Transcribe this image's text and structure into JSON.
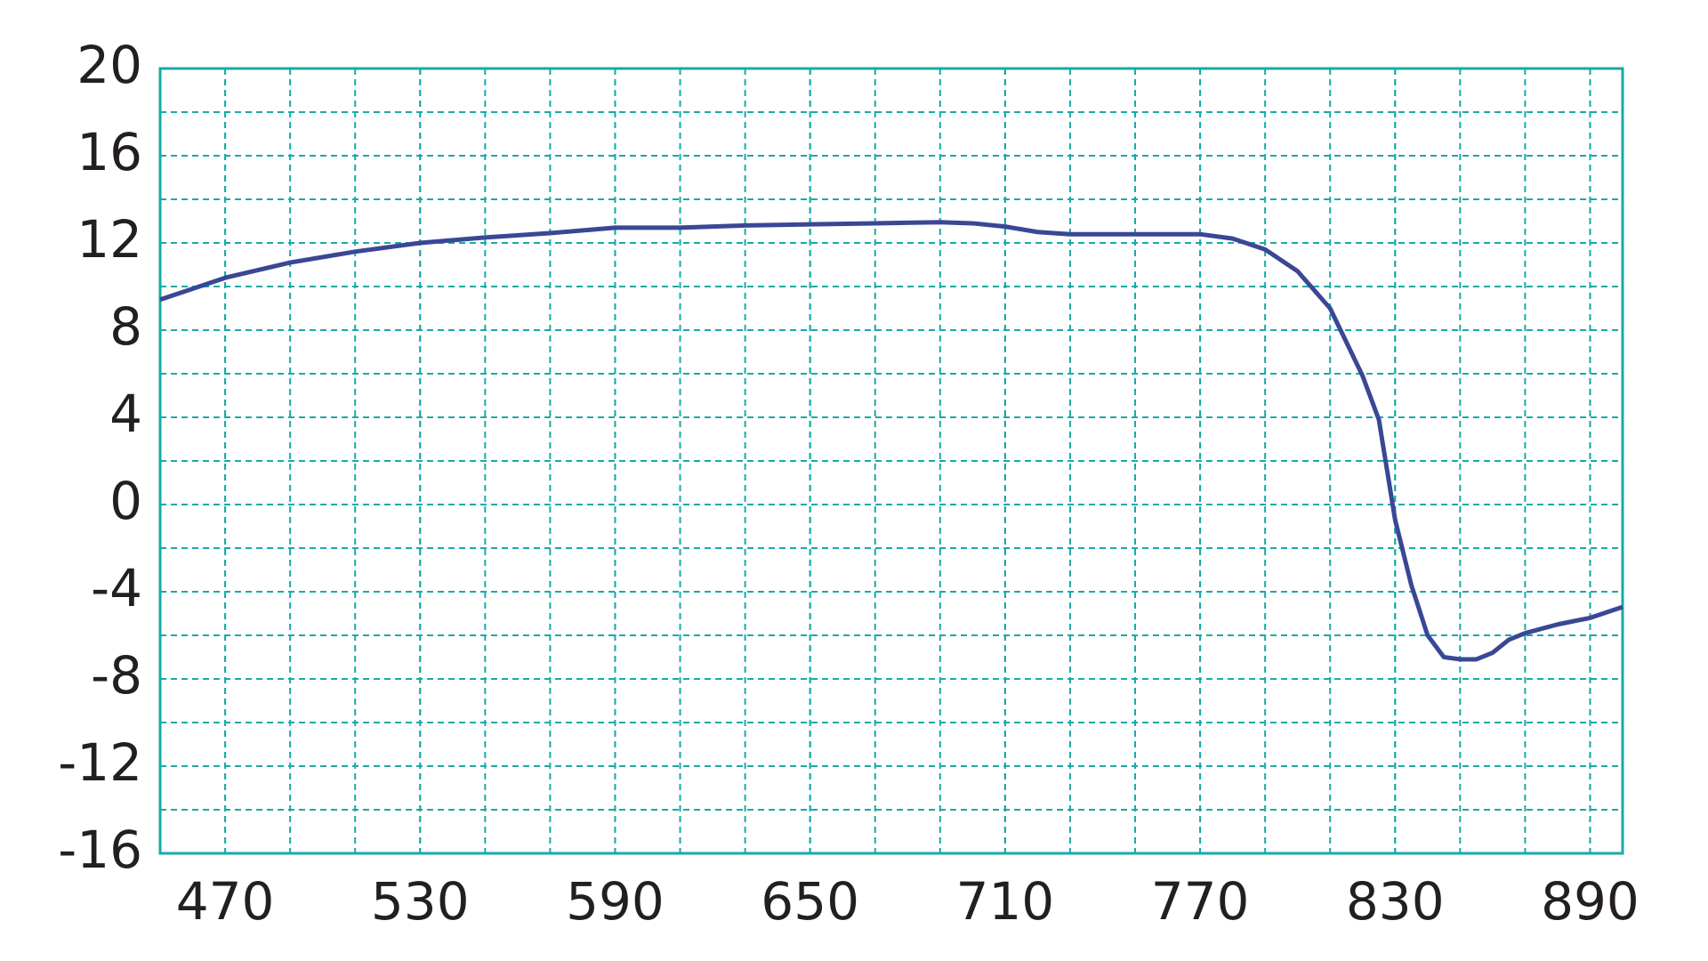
{
  "chart_data": {
    "type": "line",
    "x": [
      450,
      470,
      490,
      510,
      530,
      550,
      570,
      590,
      610,
      630,
      650,
      670,
      690,
      700,
      710,
      720,
      730,
      750,
      770,
      780,
      790,
      800,
      810,
      820,
      825,
      830,
      835,
      840,
      845,
      850,
      855,
      860,
      865,
      870,
      880,
      890,
      900
    ],
    "series": [
      {
        "color": "#3a4795",
        "values": [
          9.4,
          10.4,
          11.1,
          11.6,
          12.0,
          12.25,
          12.45,
          12.7,
          12.7,
          12.8,
          12.85,
          12.9,
          12.95,
          12.9,
          12.75,
          12.5,
          12.4,
          12.4,
          12.4,
          12.2,
          11.7,
          10.7,
          9.0,
          5.9,
          3.9,
          -0.7,
          -3.7,
          -6.0,
          -7.0,
          -7.1,
          -7.1,
          -6.8,
          -6.2,
          -5.9,
          -5.5,
          -5.2,
          -4.7
        ]
      }
    ],
    "xlim": [
      450,
      900
    ],
    "xticks": [
      470,
      530,
      590,
      650,
      710,
      770,
      830,
      890
    ],
    "ylim": [
      -16,
      20
    ],
    "yticks": [
      -16,
      -12,
      -8,
      -4,
      0,
      4,
      8,
      12,
      16,
      20
    ],
    "grid": true,
    "grid_color": "#17aba6"
  }
}
